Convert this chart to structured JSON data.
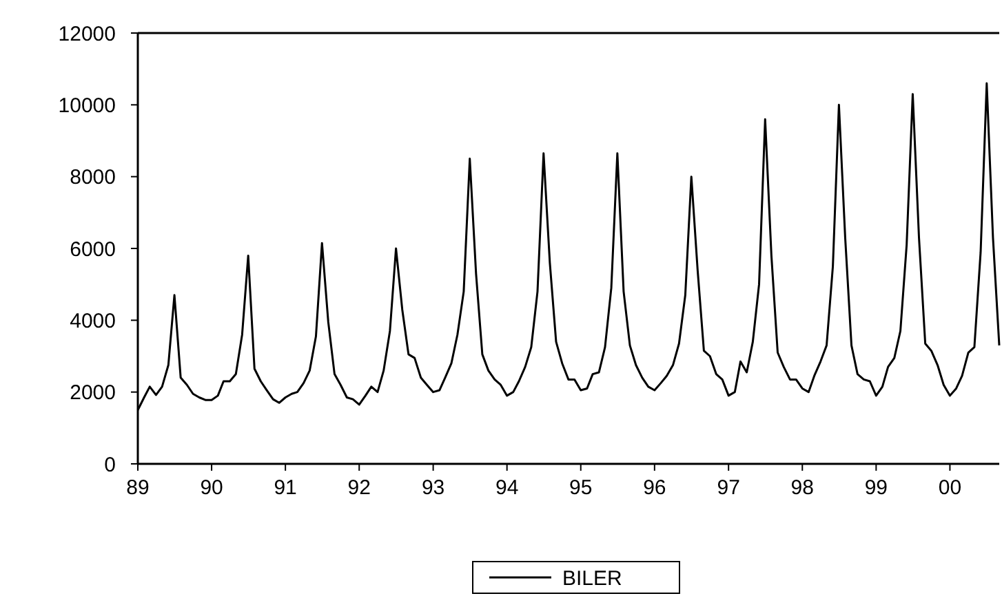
{
  "chart_data": {
    "type": "line",
    "legend": "bottom",
    "grid": false,
    "marker": "none",
    "line_style": "solid",
    "xlim": [
      "1989-01",
      "2000-09"
    ],
    "xticks": [
      {
        "value": "1989-01",
        "label": "89"
      },
      {
        "value": "1990-01",
        "label": "90"
      },
      {
        "value": "1991-01",
        "label": "91"
      },
      {
        "value": "1992-01",
        "label": "92"
      },
      {
        "value": "1993-01",
        "label": "93"
      },
      {
        "value": "1994-01",
        "label": "94"
      },
      {
        "value": "1995-01",
        "label": "95"
      },
      {
        "value": "1996-01",
        "label": "96"
      },
      {
        "value": "1997-01",
        "label": "97"
      },
      {
        "value": "1998-01",
        "label": "98"
      },
      {
        "value": "1999-01",
        "label": "99"
      },
      {
        "value": "2000-01",
        "label": "00"
      }
    ],
    "ylim": [
      0,
      12000
    ],
    "yticks": [
      0,
      2000,
      4000,
      6000,
      8000,
      10000,
      12000
    ],
    "x": [
      "1989-01",
      "1989-02",
      "1989-03",
      "1989-04",
      "1989-05",
      "1989-06",
      "1989-07",
      "1989-08",
      "1989-09",
      "1989-10",
      "1989-11",
      "1989-12",
      "1990-01",
      "1990-02",
      "1990-03",
      "1990-04",
      "1990-05",
      "1990-06",
      "1990-07",
      "1990-08",
      "1990-09",
      "1990-10",
      "1990-11",
      "1990-12",
      "1991-01",
      "1991-02",
      "1991-03",
      "1991-04",
      "1991-05",
      "1991-06",
      "1991-07",
      "1991-08",
      "1991-09",
      "1991-10",
      "1991-11",
      "1991-12",
      "1992-01",
      "1992-02",
      "1992-03",
      "1992-04",
      "1992-05",
      "1992-06",
      "1992-07",
      "1992-08",
      "1992-09",
      "1992-10",
      "1992-11",
      "1992-12",
      "1993-01",
      "1993-02",
      "1993-03",
      "1993-04",
      "1993-05",
      "1993-06",
      "1993-07",
      "1993-08",
      "1993-09",
      "1993-10",
      "1993-11",
      "1993-12",
      "1994-01",
      "1994-02",
      "1994-03",
      "1994-04",
      "1994-05",
      "1994-06",
      "1994-07",
      "1994-08",
      "1994-09",
      "1994-10",
      "1994-11",
      "1994-12",
      "1995-01",
      "1995-02",
      "1995-03",
      "1995-04",
      "1995-05",
      "1995-06",
      "1995-07",
      "1995-08",
      "1995-09",
      "1995-10",
      "1995-11",
      "1995-12",
      "1996-01",
      "1996-02",
      "1996-03",
      "1996-04",
      "1996-05",
      "1996-06",
      "1996-07",
      "1996-08",
      "1996-09",
      "1996-10",
      "1996-11",
      "1996-12",
      "1997-01",
      "1997-02",
      "1997-03",
      "1997-04",
      "1997-05",
      "1997-06",
      "1997-07",
      "1997-08",
      "1997-09",
      "1997-10",
      "1997-11",
      "1997-12",
      "1998-01",
      "1998-02",
      "1998-03",
      "1998-04",
      "1998-05",
      "1998-06",
      "1998-07",
      "1998-08",
      "1998-09",
      "1998-10",
      "1998-11",
      "1998-12",
      "1999-01",
      "1999-02",
      "1999-03",
      "1999-04",
      "1999-05",
      "1999-06",
      "1999-07",
      "1999-08",
      "1999-09",
      "1999-10",
      "1999-11",
      "1999-12",
      "2000-01",
      "2000-02",
      "2000-03",
      "2000-04",
      "2000-05",
      "2000-06",
      "2000-07",
      "2000-08",
      "2000-09"
    ],
    "series": [
      {
        "name": "BILER",
        "color": "#000000",
        "values": [
          1500,
          1850,
          2150,
          1920,
          2150,
          2750,
          4700,
          2400,
          2200,
          1950,
          1850,
          1780,
          1780,
          1900,
          2300,
          2300,
          2500,
          3600,
          5800,
          2650,
          2300,
          2050,
          1800,
          1700,
          1850,
          1950,
          2000,
          2250,
          2600,
          3550,
          6150,
          3950,
          2500,
          2200,
          1850,
          1800,
          1650,
          1900,
          2150,
          2000,
          2600,
          3700,
          6000,
          4300,
          3050,
          2950,
          2400,
          2200,
          2000,
          2050,
          2400,
          2800,
          3600,
          4800,
          8500,
          5300,
          3050,
          2600,
          2350,
          2200,
          1900,
          2000,
          2300,
          2700,
          3250,
          4800,
          8650,
          5600,
          3400,
          2800,
          2350,
          2350,
          2050,
          2100,
          2500,
          2550,
          3250,
          4900,
          8650,
          4800,
          3300,
          2750,
          2400,
          2150,
          2050,
          2250,
          2450,
          2750,
          3350,
          4700,
          8000,
          5400,
          3150,
          3000,
          2500,
          2350,
          1900,
          2000,
          2850,
          2550,
          3400,
          5000,
          9600,
          5800,
          3100,
          2700,
          2350,
          2350,
          2100,
          2000,
          2450,
          2850,
          3300,
          5500,
          10000,
          6300,
          3300,
          2500,
          2350,
          2300,
          1900,
          2150,
          2700,
          2950,
          3700,
          6100,
          10300,
          6300,
          3350,
          3150,
          2750,
          2200,
          1900,
          2100,
          2450,
          3100,
          3250,
          5900,
          10600,
          6300,
          3300
        ]
      }
    ]
  }
}
